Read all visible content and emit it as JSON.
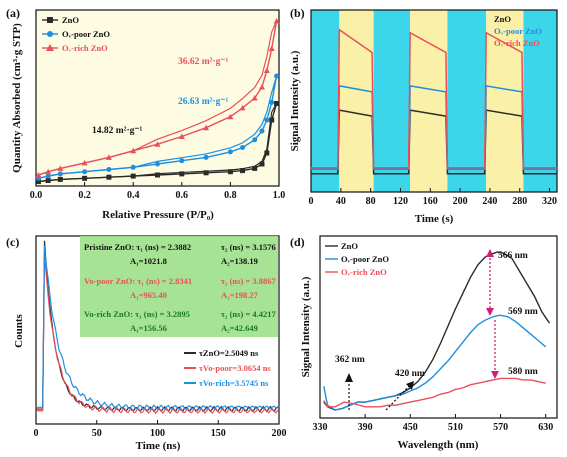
{
  "colors": {
    "zno": "#2b2b2b",
    "poor": "#1e8fe0",
    "rich": "#e8505b",
    "panel_a_bg": "#fdfbe2",
    "panel_b_cyan": "#3cd6ea",
    "panel_b_yellow": "#fbf0a8",
    "box_green": "#9ce08a",
    "arrow_magenta": "#d0207a"
  },
  "panels": {
    "a": {
      "label": "(a)"
    },
    "b": {
      "label": "(b)"
    },
    "c": {
      "label": "(c)"
    },
    "d": {
      "label": "(d)"
    }
  },
  "chart_data": [
    {
      "panel": "a",
      "type": "line",
      "xlabel": "Relative Pressure (P/P₀)",
      "ylabel": "Quantity Absorbed (cm³·g STP)",
      "xlim": [
        0.0,
        1.0
      ],
      "xticks": [
        "0.0",
        "0.2",
        "0.4",
        "0.6",
        "0.8",
        "1.0"
      ],
      "legend": [
        "ZnO",
        "Oᵥ-poor ZnO",
        "Oᵥ-rich ZnO"
      ],
      "legend_position": "top-left",
      "annotations": [
        "14.82 m²·g⁻¹",
        "26.63 m²·g⁻¹",
        "36.62 m²·g⁻¹"
      ],
      "series": [
        {
          "name": "ZnO",
          "x": [
            0.01,
            0.05,
            0.1,
            0.2,
            0.3,
            0.4,
            0.5,
            0.6,
            0.7,
            0.8,
            0.85,
            0.9,
            0.93,
            0.95,
            0.97,
            0.99
          ],
          "y": [
            4,
            5,
            6,
            7,
            8,
            9,
            10,
            11,
            12,
            13,
            14,
            16,
            20,
            30,
            60,
            75
          ]
        },
        {
          "name": "Oᵥ-poor ZnO",
          "x": [
            0.01,
            0.05,
            0.1,
            0.2,
            0.3,
            0.4,
            0.5,
            0.6,
            0.7,
            0.8,
            0.85,
            0.9,
            0.93,
            0.95,
            0.97,
            0.99
          ],
          "y": [
            7,
            9,
            11,
            13,
            15,
            17,
            20,
            23,
            26,
            31,
            35,
            42,
            50,
            60,
            76,
            100
          ]
        },
        {
          "name": "Oᵥ-rich ZnO",
          "x": [
            0.01,
            0.05,
            0.1,
            0.2,
            0.3,
            0.4,
            0.5,
            0.6,
            0.7,
            0.8,
            0.85,
            0.9,
            0.93,
            0.95,
            0.97,
            0.99
          ],
          "y": [
            10,
            13,
            16,
            21,
            26,
            32,
            38,
            45,
            53,
            63,
            71,
            80,
            90,
            105,
            125,
            150
          ]
        }
      ]
    },
    {
      "panel": "b",
      "type": "line",
      "xlabel": "Time (s)",
      "ylabel": "Signal Intensity (a.u.)",
      "xlim": [
        0,
        330
      ],
      "xticks": [
        "0",
        "40",
        "80",
        "120",
        "160",
        "200",
        "240",
        "280",
        "320"
      ],
      "legend": [
        "ZnO",
        "Oᵥ-poor ZnO",
        "Oᵥ-rich ZnO"
      ],
      "legend_position": "top-right",
      "bands": [
        {
          "from": 0,
          "to": 38,
          "kind": "cyan"
        },
        {
          "from": 38,
          "to": 84,
          "kind": "yellow"
        },
        {
          "from": 84,
          "to": 133,
          "kind": "cyan"
        },
        {
          "from": 133,
          "to": 183,
          "kind": "yellow"
        },
        {
          "from": 183,
          "to": 235,
          "kind": "cyan"
        },
        {
          "from": 235,
          "to": 285,
          "kind": "yellow"
        },
        {
          "from": 285,
          "to": 330,
          "kind": "cyan"
        }
      ],
      "series": [
        {
          "name": "ZnO",
          "x": [
            0,
            36,
            38,
            82,
            84,
            131,
            133,
            181,
            183,
            233,
            235,
            283,
            285,
            330
          ],
          "y": [
            12,
            12,
            54,
            50,
            12,
            12,
            54,
            50,
            12,
            12,
            54,
            50,
            12,
            12
          ]
        },
        {
          "name": "Oᵥ-poor ZnO",
          "x": [
            0,
            36,
            38,
            82,
            84,
            131,
            133,
            181,
            183,
            233,
            235,
            283,
            285,
            330
          ],
          "y": [
            15,
            15,
            70,
            66,
            15,
            15,
            70,
            66,
            15,
            15,
            70,
            66,
            15,
            15
          ]
        },
        {
          "name": "Oᵥ-rich ZnO",
          "x": [
            0,
            36,
            38,
            82,
            84,
            131,
            133,
            181,
            183,
            233,
            235,
            283,
            285,
            330
          ],
          "y": [
            16,
            16,
            107,
            92,
            16,
            16,
            105,
            92,
            16,
            16,
            105,
            92,
            16,
            16
          ]
        }
      ]
    },
    {
      "panel": "c",
      "type": "line",
      "xlabel": "Time (ns)",
      "ylabel": "Counts",
      "xlim": [
        0,
        200
      ],
      "xticks": [
        "0",
        "50",
        "100",
        "150",
        "200"
      ],
      "legend": [
        "τZnO=2.5049 ns",
        "τVo-poor=3.0654 ns",
        "τVo-rich=3.5745 ns"
      ],
      "legend_position": "bottom-right",
      "info_box": {
        "pristine_line1": "Pristine ZnO: τ₁ (ns) = 2.3882",
        "pristine_tau2": "τ₂ (ns) = 3.1576",
        "pristine_line2": "A₁=1021.8",
        "pristine_a2": "A₂=138.19",
        "poor_line1": "Vo-poor ZnO: τ₁ (ns) = 2.8341",
        "poor_tau2": "τ₂ (ns) = 3.8867",
        "poor_line2": "A₁=965.40",
        "poor_a2": "A₂=198.27",
        "rich_line1": "Vo-rich ZnO: τ₁ (ns) = 3.2895",
        "rich_tau2": "τ₂ (ns) = 4.4217",
        "rich_line2": "A₁=156.56",
        "rich_a2": "A₂=42.649"
      },
      "series": [
        {
          "name": "τZnO=2.5049 ns",
          "peak_x": 7,
          "peak": 100,
          "tail": 4,
          "decay": 9
        },
        {
          "name": "τVo-poor=3.0654 ns",
          "peak_x": 7,
          "peak": 92,
          "tail": 3,
          "decay": 10
        },
        {
          "name": "τVo-rich=3.5745 ns",
          "peak_x": 7,
          "peak": 98,
          "tail": 5,
          "decay": 12
        }
      ]
    },
    {
      "panel": "d",
      "type": "line",
      "xlabel": "Wavelength (nm)",
      "ylabel": "Signal Intensity (a.u.)",
      "xlim": [
        330,
        645
      ],
      "xticks": [
        "330",
        "390",
        "450",
        "510",
        "570",
        "630"
      ],
      "legend": [
        "ZnO",
        "Oᵥ-poor ZnO",
        "Oᵥ-rich ZnO"
      ],
      "legend_position": "top-left",
      "annotations": [
        "566 nm",
        "569 nm",
        "580 nm",
        "362 nm",
        "420 nm"
      ],
      "series": [
        {
          "name": "ZnO",
          "x": [
            335,
            340,
            350,
            360,
            370,
            380,
            390,
            400,
            410,
            420,
            430,
            440,
            450,
            460,
            470,
            480,
            490,
            500,
            510,
            520,
            530,
            540,
            550,
            560,
            566,
            575,
            585,
            595,
            605,
            615,
            625,
            635
          ],
          "y": [
            5,
            2,
            0,
            1,
            3,
            5,
            5,
            6,
            7,
            8,
            9,
            11,
            14,
            18,
            24,
            32,
            42,
            53,
            64,
            74,
            84,
            92,
            97,
            99,
            100,
            99,
            96,
            88,
            80,
            72,
            62,
            55
          ]
        },
        {
          "name": "Oᵥ-poor ZnO",
          "x": [
            335,
            340,
            350,
            360,
            370,
            380,
            390,
            400,
            410,
            420,
            430,
            440,
            450,
            460,
            470,
            480,
            490,
            500,
            510,
            520,
            530,
            540,
            550,
            560,
            569,
            580,
            590,
            600,
            610,
            620,
            630
          ],
          "y": [
            15,
            3,
            0,
            1,
            3,
            5,
            5,
            6,
            7,
            8,
            9,
            10,
            12,
            14,
            17,
            21,
            26,
            31,
            37,
            43,
            49,
            54,
            57,
            59,
            60,
            59,
            56,
            52,
            48,
            44,
            40
          ]
        },
        {
          "name": "Oᵥ-rich ZnO",
          "x": [
            335,
            340,
            350,
            362,
            375,
            390,
            400,
            410,
            420,
            430,
            440,
            450,
            460,
            470,
            480,
            490,
            500,
            510,
            520,
            530,
            540,
            550,
            560,
            570,
            580,
            590,
            600,
            610,
            620,
            630
          ],
          "y": [
            6,
            2,
            2,
            5,
            4,
            2,
            2,
            2,
            3,
            3,
            4,
            5,
            6,
            7,
            8,
            10,
            11,
            13,
            14,
            16,
            17,
            18,
            19,
            20,
            20,
            20,
            19,
            19,
            18,
            17
          ]
        }
      ]
    }
  ]
}
